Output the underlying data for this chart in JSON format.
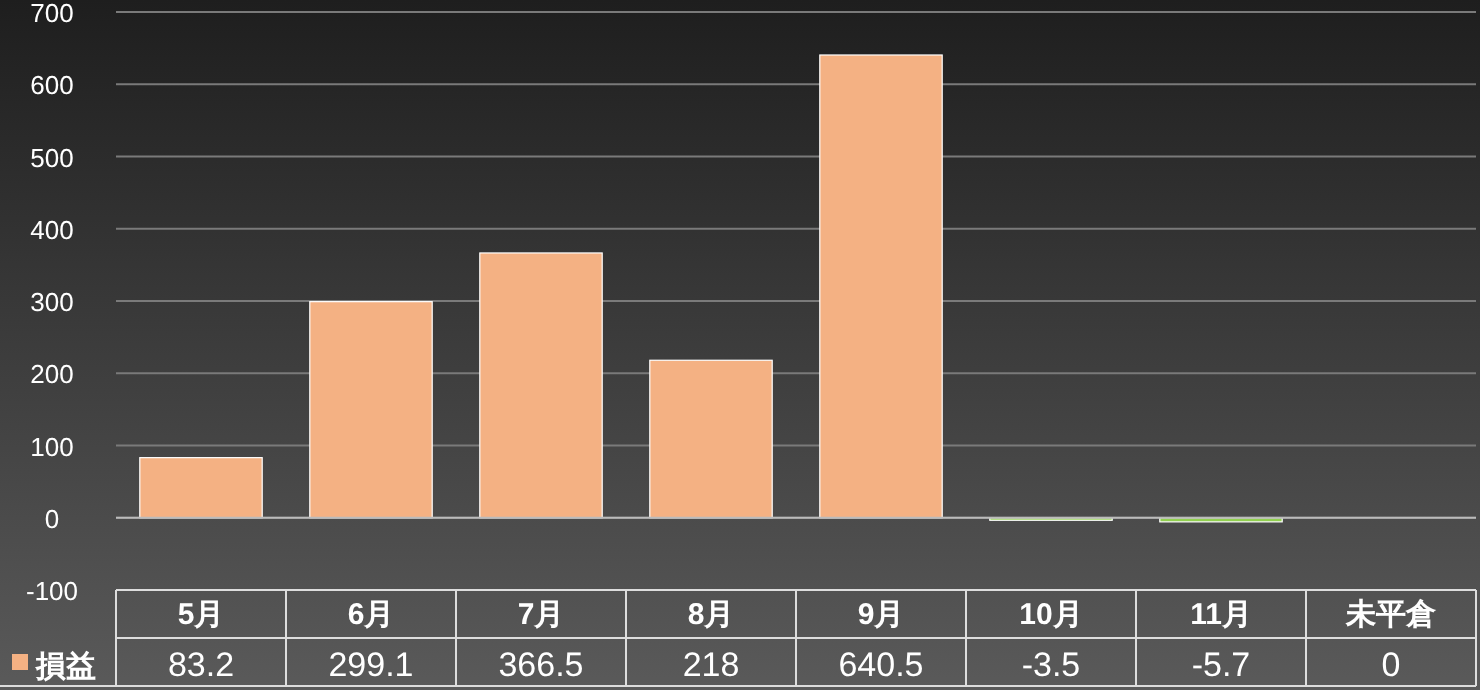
{
  "chart_data": {
    "type": "bar",
    "categories": [
      "5月",
      "6月",
      "7月",
      "8月",
      "9月",
      "10月",
      "11月",
      "未平倉"
    ],
    "series": [
      {
        "name": "損益",
        "values": [
          83.2,
          299.1,
          366.5,
          218,
          640.5,
          -3.5,
          -5.7,
          0
        ],
        "colors": [
          "#f4b183",
          "#f4b183",
          "#f4b183",
          "#f4b183",
          "#f4b183",
          "#92d050",
          "#92d050",
          "#f4b183"
        ]
      }
    ],
    "ylim": [
      -100,
      700
    ],
    "yticks": [
      -100,
      0,
      100,
      200,
      300,
      400,
      500,
      600,
      700
    ],
    "grid": "y",
    "data_labels": true,
    "legend": "bottom left"
  }
}
